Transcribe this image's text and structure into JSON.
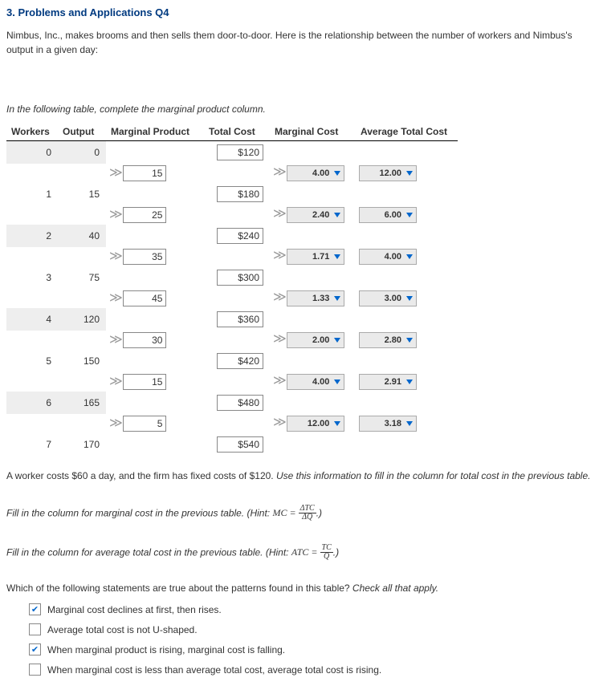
{
  "title": "3. Problems and Applications Q4",
  "intro": "Nimbus, Inc., makes brooms and then sells them door-to-door. Here is the relationship between the number of workers and Nimbus's output in a given day:",
  "instruction1": "In the following table, complete the marginal product column.",
  "headers": {
    "workers": "Workers",
    "output": "Output",
    "mp": "Marginal Product",
    "tc": "Total Cost",
    "mc": "Marginal Cost",
    "atc": "Average Total Cost"
  },
  "rows": [
    {
      "w": "0",
      "o": "0",
      "tc": "$120"
    },
    {
      "w": "1",
      "o": "15",
      "tc": "$180"
    },
    {
      "w": "2",
      "o": "40",
      "tc": "$240"
    },
    {
      "w": "3",
      "o": "75",
      "tc": "$300"
    },
    {
      "w": "4",
      "o": "120",
      "tc": "$360"
    },
    {
      "w": "5",
      "o": "150",
      "tc": "$420"
    },
    {
      "w": "6",
      "o": "165",
      "tc": "$480"
    },
    {
      "w": "7",
      "o": "170",
      "tc": "$540"
    }
  ],
  "mp": [
    "15",
    "25",
    "35",
    "45",
    "30",
    "15",
    "5"
  ],
  "mc": [
    "4.00",
    "2.40",
    "1.71",
    "1.33",
    "2.00",
    "4.00",
    "12.00"
  ],
  "atc": [
    "12.00",
    "6.00",
    "4.00",
    "3.00",
    "2.80",
    "2.91",
    "3.18"
  ],
  "para2_a": "A worker costs $60 a day, and the firm has fixed costs of $120. ",
  "para2_b": "Use this information to fill in the column for total cost in the previous table.",
  "para3_a": "Fill in the column for marginal cost in the previous table. (Hint: ",
  "para3_c": ".)",
  "para4_a": "Fill in the column for average total cost in the previous table. (Hint: ",
  "para4_c": ".)",
  "para5_a": "Which of the following statements are true about the patterns found in this table? ",
  "para5_b": "Check all that apply.",
  "opts": [
    {
      "checked": true,
      "label": "Marginal cost declines at first, then rises."
    },
    {
      "checked": false,
      "label": "Average total cost is not U-shaped."
    },
    {
      "checked": true,
      "label": "When marginal product is rising, marginal cost is falling."
    },
    {
      "checked": false,
      "label": "When marginal cost is less than average total cost, average total cost is rising."
    }
  ]
}
